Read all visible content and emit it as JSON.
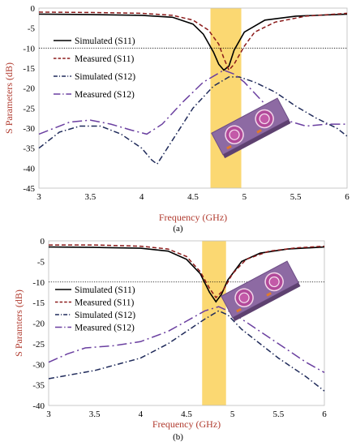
{
  "chart_data": [
    {
      "type": "line",
      "caption": "(a)",
      "xlabel": "Frequency (GHz)",
      "ylabel": "S Parameters (dB)",
      "xlim": [
        3,
        6
      ],
      "ylim": [
        -45,
        0
      ],
      "xticks": [
        "3",
        "3.5",
        "4",
        "4.5",
        "5",
        "5.5",
        "6"
      ],
      "yticks": [
        "0",
        "-5",
        "-10",
        "-15",
        "-20",
        "-25",
        "-30",
        "-35",
        "-40",
        "-45"
      ],
      "reference_line_y": -10,
      "highlight_band": [
        4.67,
        4.97
      ],
      "legend_position": "top-left",
      "series": [
        {
          "name": "Simulated (S11)",
          "style": "solid",
          "color": "#000000",
          "points": [
            [
              3,
              -1.5
            ],
            [
              3.5,
              -1.6
            ],
            [
              4,
              -1.8
            ],
            [
              4.3,
              -2.3
            ],
            [
              4.5,
              -4
            ],
            [
              4.6,
              -6.5
            ],
            [
              4.7,
              -11
            ],
            [
              4.75,
              -14
            ],
            [
              4.8,
              -15.5
            ],
            [
              4.85,
              -14.5
            ],
            [
              4.9,
              -10.5
            ],
            [
              5,
              -6
            ],
            [
              5.2,
              -3
            ],
            [
              5.5,
              -2
            ],
            [
              6,
              -1.5
            ]
          ]
        },
        {
          "name": "Measured (S11)",
          "style": "dash",
          "color": "#8b1a1a",
          "points": [
            [
              3,
              -1
            ],
            [
              3.5,
              -1.1
            ],
            [
              4,
              -1.3
            ],
            [
              4.3,
              -1.8
            ],
            [
              4.5,
              -3
            ],
            [
              4.65,
              -5.5
            ],
            [
              4.75,
              -9
            ],
            [
              4.8,
              -12.5
            ],
            [
              4.85,
              -15.5
            ],
            [
              4.9,
              -14
            ],
            [
              5,
              -9.5
            ],
            [
              5.1,
              -6
            ],
            [
              5.3,
              -3.5
            ],
            [
              5.6,
              -2
            ],
            [
              6,
              -1.3
            ]
          ]
        },
        {
          "name": "Simulated (S12)",
          "style": "dashdot",
          "color": "#1f2a5a",
          "points": [
            [
              3,
              -35
            ],
            [
              3.2,
              -31
            ],
            [
              3.4,
              -29.5
            ],
            [
              3.6,
              -29.5
            ],
            [
              3.8,
              -31.5
            ],
            [
              4,
              -35
            ],
            [
              4.1,
              -38
            ],
            [
              4.15,
              -39
            ],
            [
              4.3,
              -33
            ],
            [
              4.5,
              -25
            ],
            [
              4.7,
              -19.5
            ],
            [
              4.85,
              -17.2
            ],
            [
              4.95,
              -17.2
            ],
            [
              5.1,
              -18.5
            ],
            [
              5.3,
              -21
            ],
            [
              5.5,
              -24.5
            ],
            [
              5.7,
              -27.5
            ],
            [
              5.9,
              -30
            ],
            [
              6,
              -32
            ]
          ]
        },
        {
          "name": "Measured (S12)",
          "style": "longdashdot",
          "color": "#6a3fa0",
          "points": [
            [
              3,
              -31.5
            ],
            [
              3.3,
              -28.5
            ],
            [
              3.5,
              -28
            ],
            [
              3.7,
              -29
            ],
            [
              3.9,
              -30.5
            ],
            [
              4.05,
              -31.5
            ],
            [
              4.2,
              -29
            ],
            [
              4.4,
              -23.5
            ],
            [
              4.6,
              -18.5
            ],
            [
              4.8,
              -15.5
            ],
            [
              4.9,
              -16.5
            ],
            [
              5,
              -18.5
            ],
            [
              5.2,
              -24
            ],
            [
              5.4,
              -28
            ],
            [
              5.6,
              -29.5
            ],
            [
              5.8,
              -29
            ],
            [
              6,
              -29
            ]
          ]
        }
      ]
    },
    {
      "type": "line",
      "caption": "(b)",
      "xlabel": "Frequency (GHz)",
      "ylabel": "S Paramters (dB)",
      "xlim": [
        3,
        6
      ],
      "ylim": [
        -40,
        0
      ],
      "xticks": [
        "3",
        "3.5",
        "4",
        "4.5",
        "5",
        "5.5",
        "6"
      ],
      "yticks": [
        "0",
        "-5",
        "-10",
        "-15",
        "-20",
        "-25",
        "-30",
        "-35",
        "-40"
      ],
      "reference_line_y": -10,
      "highlight_band": [
        4.67,
        4.93
      ],
      "legend_position": "center-left",
      "series": [
        {
          "name": "Simulated (S11)",
          "style": "solid",
          "color": "#000000",
          "points": [
            [
              3,
              -1.5
            ],
            [
              3.5,
              -1.6
            ],
            [
              4,
              -1.8
            ],
            [
              4.3,
              -2.5
            ],
            [
              4.5,
              -4.5
            ],
            [
              4.65,
              -8
            ],
            [
              4.75,
              -12.5
            ],
            [
              4.82,
              -14.8
            ],
            [
              4.88,
              -13
            ],
            [
              4.95,
              -9.5
            ],
            [
              5.1,
              -5
            ],
            [
              5.3,
              -3
            ],
            [
              5.6,
              -2
            ],
            [
              6,
              -1.5
            ]
          ]
        },
        {
          "name": "Measured (S11)",
          "style": "dash",
          "color": "#8b1a1a",
          "points": [
            [
              3,
              -1
            ],
            [
              3.5,
              -1
            ],
            [
              4,
              -1.3
            ],
            [
              4.3,
              -2
            ],
            [
              4.5,
              -3.8
            ],
            [
              4.65,
              -7.5
            ],
            [
              4.75,
              -11.5
            ],
            [
              4.82,
              -13.8
            ],
            [
              4.9,
              -12
            ],
            [
              5,
              -8
            ],
            [
              5.15,
              -4.5
            ],
            [
              5.4,
              -2.5
            ],
            [
              5.7,
              -1.7
            ],
            [
              6,
              -1.3
            ]
          ]
        },
        {
          "name": "Simulated (S12)",
          "style": "dashdot",
          "color": "#1f2a5a",
          "points": [
            [
              3,
              -33.5
            ],
            [
              3.5,
              -31.5
            ],
            [
              4,
              -28.5
            ],
            [
              4.3,
              -25
            ],
            [
              4.5,
              -22
            ],
            [
              4.7,
              -19
            ],
            [
              4.85,
              -17
            ],
            [
              4.95,
              -18
            ],
            [
              5.1,
              -21.5
            ],
            [
              5.3,
              -25
            ],
            [
              5.5,
              -28.5
            ],
            [
              5.8,
              -33
            ],
            [
              6,
              -36.5
            ]
          ]
        },
        {
          "name": "Measured (S12)",
          "style": "longdashdot",
          "color": "#6a3fa0",
          "points": [
            [
              3,
              -29.5
            ],
            [
              3.2,
              -27.5
            ],
            [
              3.4,
              -26
            ],
            [
              3.7,
              -25.5
            ],
            [
              4,
              -24.5
            ],
            [
              4.3,
              -22
            ],
            [
              4.5,
              -19.5
            ],
            [
              4.7,
              -17
            ],
            [
              4.85,
              -16
            ],
            [
              5,
              -17.5
            ],
            [
              5.2,
              -20.5
            ],
            [
              5.4,
              -23.5
            ],
            [
              5.6,
              -26.5
            ],
            [
              5.8,
              -29.5
            ],
            [
              6,
              -32
            ]
          ]
        }
      ]
    }
  ]
}
